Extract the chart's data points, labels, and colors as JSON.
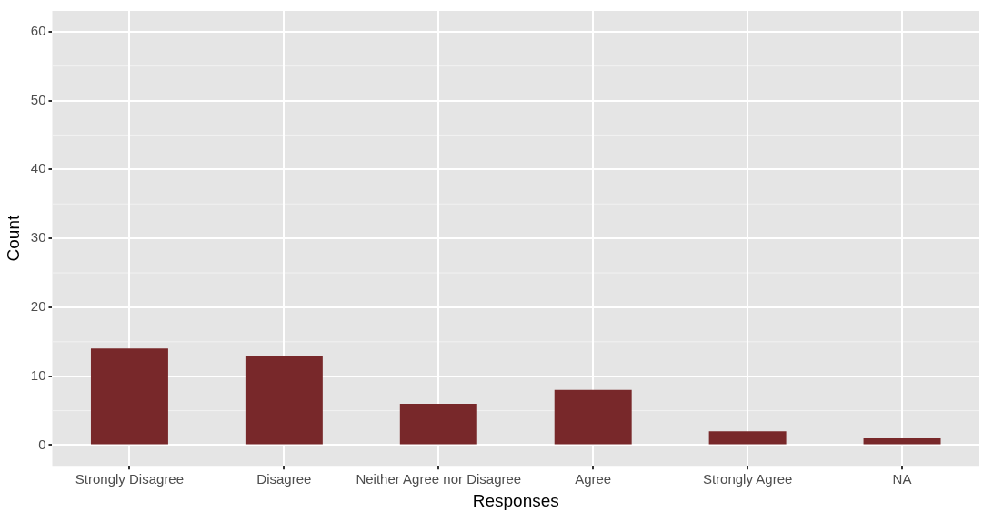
{
  "chart_data": {
    "type": "bar",
    "xlabel": "Responses",
    "ylabel": "Count",
    "categories": [
      "Strongly Disagree",
      "Disagree",
      "Neither Agree nor Disagree",
      "Agree",
      "Strongly Agree",
      "NA"
    ],
    "values": [
      14,
      13,
      6,
      8,
      2,
      1
    ],
    "color": "#78282a",
    "ylim": [
      -3,
      63
    ],
    "yticks": [
      0,
      10,
      20,
      30,
      40,
      50,
      60
    ],
    "grid": true,
    "legend": false
  }
}
